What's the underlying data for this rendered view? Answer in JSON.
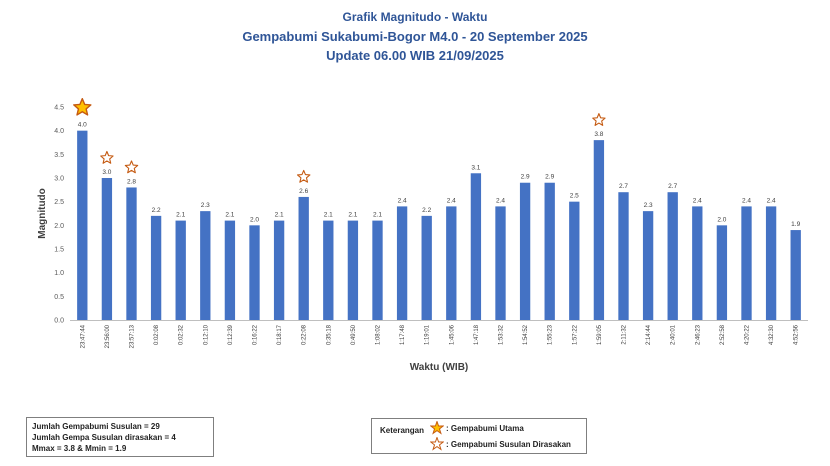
{
  "chart_data": {
    "type": "bar",
    "title": "Grafik Magnitudo - Waktu",
    "subtitle": "Gempabumi Sukabumi-Bogor M4.0 - 20 September 2025",
    "update": "Update 06.00 WIB 21/09/2025",
    "xlabel": "Waktu (WIB)",
    "ylabel": "Magnitudo",
    "ylim": [
      0,
      4.5
    ],
    "yticks": [
      "0.0",
      "0.5",
      "1.0",
      "1.5",
      "2.0",
      "2.5",
      "3.0",
      "3.5",
      "4.0",
      "4.5"
    ],
    "grid": false,
    "bar_color": "#4472c4",
    "categories": [
      "23:47:44",
      "23:56:00",
      "23:57:13",
      "0:02:08",
      "0:02:32",
      "0:12:10",
      "0:12:39",
      "0:16:22",
      "0:18:17",
      "0:22:08",
      "0:35:18",
      "0:49:50",
      "1:08:02",
      "1:17:48",
      "1:19:01",
      "1:45:06",
      "1:47:18",
      "1:53:32",
      "1:54:52",
      "1:55:23",
      "1:57:22",
      "1:59:05",
      "2:11:32",
      "2:14:44",
      "2:40:01",
      "2:46:23",
      "2:52:58",
      "4:20:22",
      "4:32:30",
      "4:52:56"
    ],
    "values": [
      4.0,
      3.0,
      2.8,
      2.2,
      2.1,
      2.3,
      2.1,
      2.0,
      2.1,
      2.6,
      2.1,
      2.1,
      2.1,
      2.4,
      2.2,
      2.4,
      3.1,
      2.4,
      2.9,
      2.9,
      2.5,
      3.8,
      2.7,
      2.3,
      2.7,
      2.4,
      2.0,
      2.4,
      2.4,
      1.9
    ],
    "value_labels": [
      "4.0",
      "3.0",
      "2.8",
      "2.2",
      "2.1",
      "2.3",
      "2.1",
      "2.0",
      "2.1",
      "2.6",
      "2.1",
      "2.1",
      "2.1",
      "2.4",
      "2.2",
      "2.4",
      "3.1",
      "2.4",
      "2.9",
      "2.9",
      "2.5",
      "3.8",
      "2.7",
      "2.3",
      "2.7",
      "2.4",
      "2.0",
      "2.4",
      "2.4",
      "1.9"
    ],
    "markers": [
      {
        "index": 0,
        "kind": "main"
      },
      {
        "index": 1,
        "kind": "felt"
      },
      {
        "index": 2,
        "kind": "felt"
      },
      {
        "index": 9,
        "kind": "felt"
      },
      {
        "index": 21,
        "kind": "felt"
      }
    ],
    "marker_colors": {
      "main_fill": "#ffc000",
      "felt_fill": "#ffffff",
      "stroke": "#c55a11"
    }
  },
  "info": {
    "line1": "Jumlah Gempabumi Susulan = 29",
    "line2": "Jumlah Gempa Susulan dirasakan = 4",
    "line3": "Mmax = 3.8 & Mmin = 1.9"
  },
  "legend": {
    "title": "Keterangan",
    "main_label": ": Gempabumi Utama",
    "felt_label": ": Gempabumi Susulan Dirasakan"
  }
}
